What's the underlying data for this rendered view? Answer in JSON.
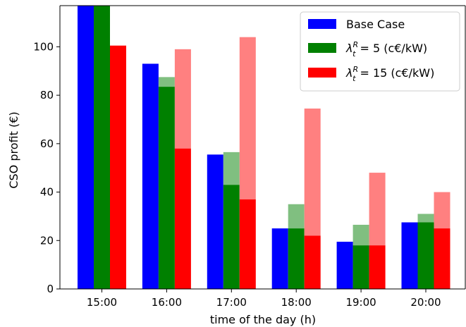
{
  "chart_data": {
    "type": "bar",
    "categories": [
      "15:00",
      "16:00",
      "17:00",
      "18:00",
      "19:00",
      "20:00"
    ],
    "series": [
      {
        "key": "base",
        "name": "Base Case",
        "color": "#0000ff",
        "values": [
          118,
          93,
          55.5,
          25,
          19.5,
          27.5
        ]
      },
      {
        "key": "l5",
        "name": "= 5 (c€/kW)",
        "color": "#008000",
        "light_color": "#80bf80",
        "values": [
          118,
          83.5,
          43,
          25,
          18,
          27.5
        ],
        "upper_values": [
          118,
          87.5,
          56.5,
          35,
          26.5,
          31
        ]
      },
      {
        "key": "l15",
        "name": "= 15 (c€/kW)",
        "color": "#ff0000",
        "light_color": "#ff8080",
        "values": [
          100.5,
          58,
          37,
          22,
          18,
          25
        ],
        "upper_values": [
          100.5,
          99,
          104,
          74.5,
          48,
          40
        ]
      }
    ],
    "legend_symbol": {
      "main": "λ",
      "sub": "t",
      "sup": "R"
    },
    "xlabel": "time of the day (h)",
    "ylabel": "CSO profit (€)",
    "ylim": [
      0,
      117
    ],
    "yticks": [
      0,
      20,
      40,
      60,
      80,
      100
    ],
    "grid": false,
    "legend_position": "top-right"
  }
}
